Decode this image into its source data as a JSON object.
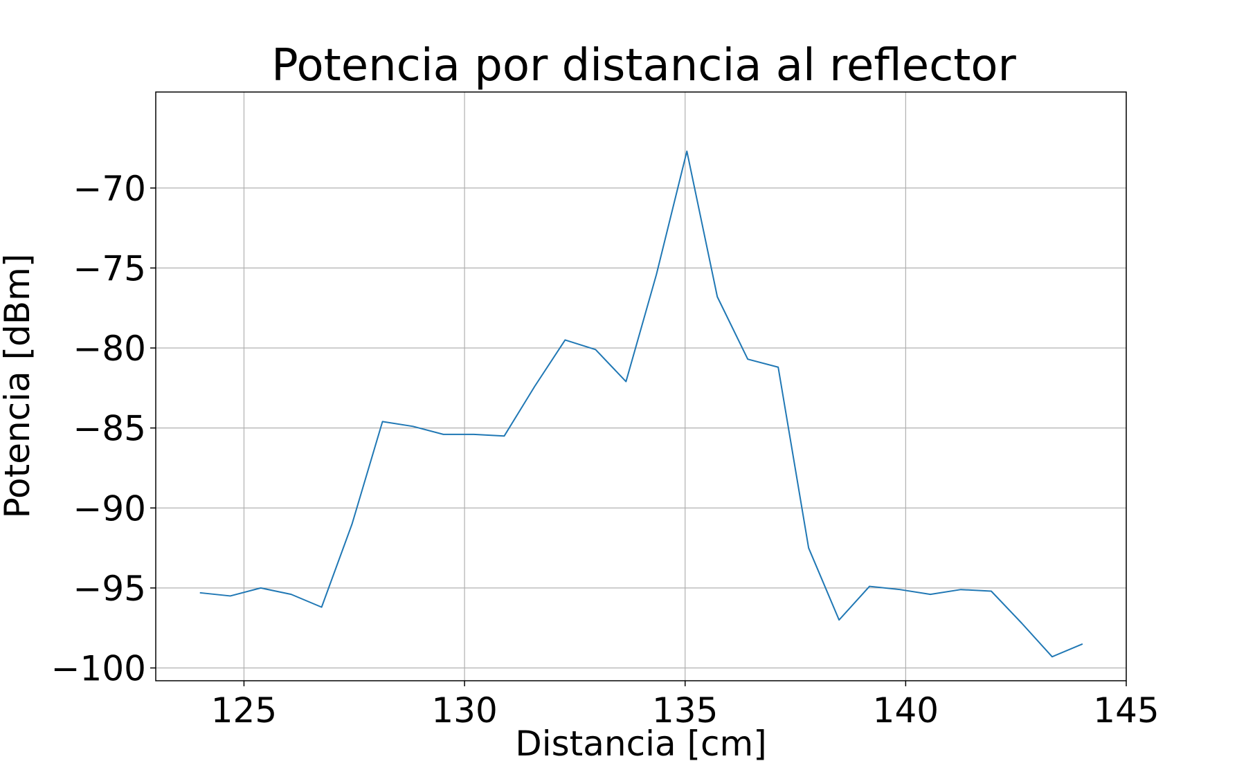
{
  "chart_data": {
    "type": "line",
    "title": "Potencia por distancia al reflector",
    "xlabel": "Distancia [cm]",
    "ylabel": "Potencia [dBm]",
    "xlim": [
      123,
      145
    ],
    "ylim": [
      -100.8,
      -64
    ],
    "xticks": [
      125,
      130,
      135,
      140,
      145
    ],
    "yticks": [
      -100,
      -95,
      -90,
      -85,
      -80,
      -75,
      -70
    ],
    "xtick_labels": [
      "125",
      "130",
      "135",
      "140",
      "145"
    ],
    "ytick_labels": [
      "−100",
      "−95",
      "−90",
      "−85",
      "−80",
      "−75",
      "−70"
    ],
    "grid": true,
    "series": [
      {
        "name": "Potencia",
        "color": "#1f77b4",
        "x": [
          124.0,
          124.69,
          125.38,
          126.07,
          126.76,
          127.45,
          128.14,
          128.83,
          129.52,
          130.21,
          130.9,
          131.59,
          132.28,
          132.97,
          133.66,
          134.35,
          135.04,
          135.73,
          136.42,
          137.11,
          137.8,
          138.49,
          139.18,
          139.87,
          140.56,
          141.25,
          141.94,
          142.63,
          143.32,
          144.01
        ],
        "y": [
          -95.3,
          -95.5,
          -95.0,
          -95.4,
          -96.2,
          -91.0,
          -84.6,
          -84.9,
          -85.4,
          -85.4,
          -85.5,
          -82.4,
          -79.5,
          -80.1,
          -82.1,
          -75.4,
          -67.7,
          -76.8,
          -80.7,
          -81.2,
          -92.5,
          -97.0,
          -94.9,
          -95.1,
          -95.4,
          -95.1,
          -95.2,
          -97.2,
          -99.3,
          -98.5
        ]
      }
    ]
  }
}
